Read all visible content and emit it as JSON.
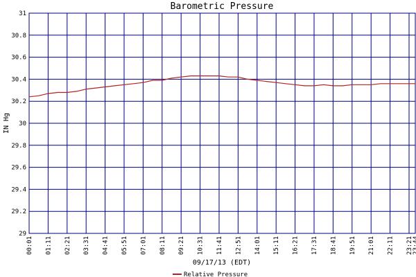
{
  "chart_data": {
    "type": "line",
    "title": "Barometric Pressure",
    "ylabel": "IN Hg",
    "xlabel": "09/17/13 (EDT)",
    "ylim": [
      29,
      31
    ],
    "yticks": [
      "29",
      "29.2",
      "29.4",
      "29.6",
      "29.8",
      "30",
      "30.2",
      "30.4",
      "30.6",
      "30.8",
      "31"
    ],
    "xticks": [
      "00:01",
      "01:11",
      "02:21",
      "03:31",
      "04:41",
      "05:51",
      "07:01",
      "08:11",
      "09:21",
      "10:31",
      "11:41",
      "12:51",
      "14:01",
      "15:11",
      "16:21",
      "17:31",
      "18:41",
      "19:51",
      "21:01",
      "22:11",
      "23:21",
      "23:44"
    ],
    "grid": true,
    "legend_position": "bottom-center",
    "colors": {
      "series": "#b22222",
      "grid": "#000080",
      "background": "#ffffff"
    },
    "series": [
      {
        "name": "Relative Pressure",
        "x": [
          "00:01",
          "00:36",
          "01:11",
          "01:46",
          "02:21",
          "02:56",
          "03:31",
          "04:06",
          "04:41",
          "05:16",
          "05:51",
          "06:26",
          "07:01",
          "07:36",
          "08:11",
          "08:46",
          "09:21",
          "09:56",
          "10:31",
          "11:06",
          "11:41",
          "12:16",
          "12:51",
          "13:26",
          "14:01",
          "14:36",
          "15:11",
          "15:46",
          "16:21",
          "16:56",
          "17:31",
          "18:06",
          "18:41",
          "19:16",
          "19:51",
          "20:26",
          "21:01",
          "21:36",
          "22:11",
          "22:46",
          "23:21",
          "23:44"
        ],
        "values": [
          30.24,
          30.25,
          30.27,
          30.28,
          30.28,
          30.29,
          30.31,
          30.32,
          30.33,
          30.34,
          30.35,
          30.36,
          30.37,
          30.39,
          30.39,
          30.41,
          30.42,
          30.43,
          30.43,
          30.43,
          30.43,
          30.42,
          30.42,
          30.4,
          30.39,
          30.38,
          30.37,
          30.36,
          30.35,
          30.34,
          30.34,
          30.35,
          30.34,
          30.34,
          30.35,
          30.35,
          30.35,
          30.36,
          30.36,
          30.36,
          30.36,
          30.36
        ]
      }
    ]
  }
}
